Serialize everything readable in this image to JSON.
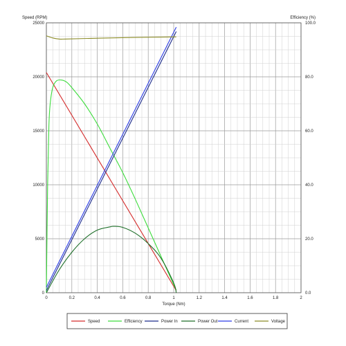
{
  "chart_data": {
    "type": "line",
    "xlabel": "Torque (Nm)",
    "ylabel_left": "Speed (RPM)",
    "ylabel_right": "Efficiency (%)",
    "xlim": [
      0,
      2
    ],
    "ylim_left": [
      0,
      25000
    ],
    "ylim_right": [
      0,
      100
    ],
    "x_ticks": [
      "0",
      "0.2",
      "0.4",
      "0.6",
      "0.8",
      "1",
      "1.2",
      "1.4",
      "1.6",
      "1.8",
      "2"
    ],
    "y_left_ticks": [
      "0",
      "5000",
      "10000",
      "15000",
      "20000",
      "25000"
    ],
    "y_right_ticks": [
      "0.0",
      "20.0",
      "40.0",
      "60.0",
      "80.0",
      "100.0"
    ],
    "grid": true,
    "legend_position": "bottom",
    "series": [
      {
        "name": "Speed",
        "color": "#d42a2a",
        "axis": "left",
        "x": [
          0,
          1.02
        ],
        "values": [
          20400,
          200
        ]
      },
      {
        "name": "Efficiency",
        "color": "#3cdc3c",
        "axis": "right",
        "x": [
          0,
          0.01,
          0.02,
          0.03,
          0.05,
          0.08,
          0.12,
          0.16,
          0.2,
          0.3,
          0.4,
          0.5,
          0.6,
          0.7,
          0.8,
          0.9,
          1.0,
          1.02
        ],
        "values": [
          0,
          40,
          62,
          70,
          76,
          78.5,
          78.8,
          78,
          76,
          70,
          62.5,
          53.5,
          44.5,
          34.5,
          24,
          13.5,
          3,
          1
        ]
      },
      {
        "name": "Power In",
        "color": "#1a2a8a",
        "axis": "left",
        "x": [
          0,
          1.02
        ],
        "values": [
          200,
          24200
        ]
      },
      {
        "name": "Power Out",
        "color": "#1d6e28",
        "axis": "left",
        "x": [
          0,
          0.1,
          0.2,
          0.3,
          0.4,
          0.5,
          0.53,
          0.6,
          0.7,
          0.8,
          0.9,
          1.0,
          1.02
        ],
        "values": [
          0,
          2100,
          3750,
          5000,
          5800,
          6100,
          6150,
          6050,
          5500,
          4550,
          3200,
          900,
          0
        ]
      },
      {
        "name": "Current",
        "color": "#2b3be6",
        "axis": "left",
        "x": [
          0,
          1.02
        ],
        "values": [
          500,
          24600
        ]
      },
      {
        "name": "Voltage",
        "color": "#8b8b26",
        "axis": "left",
        "x": [
          0,
          0.05,
          0.1,
          0.15,
          0.3,
          0.5,
          0.7,
          1.02
        ],
        "values": [
          23800,
          23600,
          23500,
          23500,
          23550,
          23600,
          23650,
          23700
        ]
      }
    ]
  }
}
